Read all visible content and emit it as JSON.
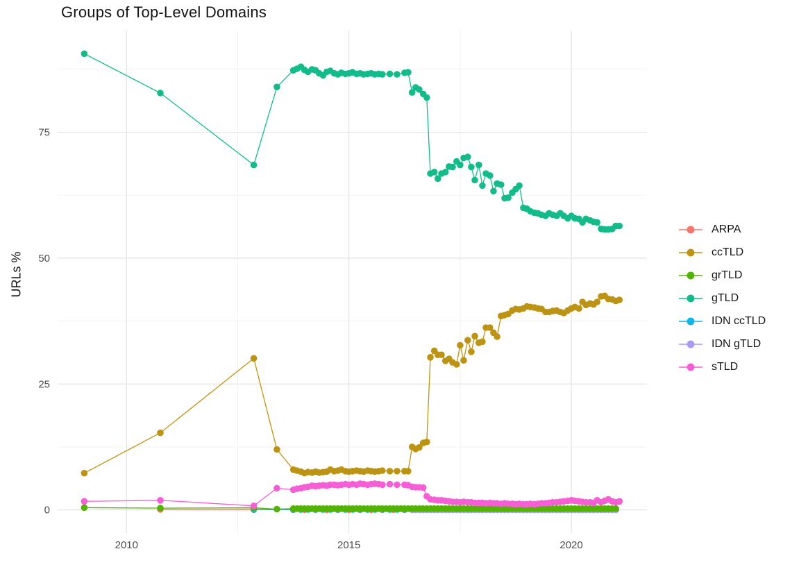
{
  "page": {
    "background": "#ffffff"
  },
  "chart_data": {
    "type": "line",
    "title": "Groups of Top-Level Domains",
    "xlabel": "",
    "ylabel": "URLs %",
    "legend_position": "right",
    "grid": "major+minor",
    "point_size": 4.8,
    "line_width": 1.3,
    "x_axis": {
      "lim": [
        2008.45,
        2021.7
      ],
      "ticks": [
        2010,
        2015,
        2020
      ],
      "tick_labels": [
        "2010",
        "2015",
        "2020"
      ],
      "minor": [
        2012.5,
        2017.5
      ]
    },
    "y_axis": {
      "lim": [
        -4.6,
        95.2
      ],
      "ticks": [
        0,
        25,
        50,
        75
      ],
      "tick_labels": [
        "0",
        "25",
        "50",
        "75"
      ],
      "minor": [
        12.5,
        37.5,
        62.5,
        87.5
      ]
    },
    "colors": {
      "grid_major": "#E3E3E3",
      "grid_minor": "#F0F0F0",
      "tick_label": "#4D4D4D",
      "title": "#141414"
    },
    "series": [
      {
        "name": "ARPA",
        "color": "#F8766D",
        "z": 1,
        "points": [
          [
            2010.76,
            0.1
          ],
          [
            2012.86,
            0.05
          ]
        ],
        "segments": [
          {
            "from": 2013.75,
            "to": 2021.08,
            "step": 0.25,
            "value": 0.05
          }
        ]
      },
      {
        "name": "ccTLD",
        "color": "#BD9313",
        "z": 5,
        "points": [
          [
            2009.05,
            7.3
          ],
          [
            2010.76,
            15.3
          ],
          [
            2012.86,
            30.1
          ],
          [
            2013.38,
            12.0
          ],
          [
            2013.75,
            8.0
          ],
          [
            2013.83,
            7.8
          ],
          [
            2013.92,
            7.6
          ],
          [
            2014.0,
            7.3
          ],
          [
            2014.08,
            7.5
          ],
          [
            2014.17,
            7.4
          ],
          [
            2014.25,
            7.6
          ],
          [
            2014.33,
            7.4
          ],
          [
            2014.42,
            7.5
          ],
          [
            2014.5,
            7.6
          ],
          [
            2014.58,
            8.0
          ],
          [
            2014.67,
            7.7
          ],
          [
            2014.75,
            7.8
          ],
          [
            2014.83,
            8.0
          ],
          [
            2014.92,
            7.7
          ],
          [
            2015.0,
            7.6
          ],
          [
            2015.08,
            7.7
          ],
          [
            2015.17,
            7.8
          ],
          [
            2015.25,
            7.7
          ],
          [
            2015.33,
            7.6
          ],
          [
            2015.42,
            7.8
          ],
          [
            2015.5,
            7.7
          ],
          [
            2015.58,
            7.6
          ],
          [
            2015.67,
            7.7
          ],
          [
            2015.75,
            7.8
          ],
          [
            2015.92,
            7.7
          ],
          [
            2016.08,
            7.7
          ],
          [
            2016.25,
            7.7
          ],
          [
            2016.33,
            7.7
          ],
          [
            2016.42,
            12.5
          ],
          [
            2016.5,
            12.1
          ],
          [
            2016.58,
            12.4
          ],
          [
            2016.67,
            13.3
          ],
          [
            2016.75,
            13.5
          ],
          [
            2016.83,
            30.3
          ],
          [
            2016.92,
            31.6
          ],
          [
            2017.0,
            30.8
          ],
          [
            2017.08,
            30.8
          ],
          [
            2017.17,
            29.6
          ],
          [
            2017.25,
            30.0
          ],
          [
            2017.33,
            29.3
          ],
          [
            2017.42,
            28.9
          ],
          [
            2017.5,
            32.7
          ],
          [
            2017.58,
            29.7
          ],
          [
            2017.67,
            33.7
          ],
          [
            2017.75,
            31.4
          ],
          [
            2017.83,
            34.5
          ],
          [
            2017.92,
            33.2
          ],
          [
            2018.0,
            33.4
          ],
          [
            2018.08,
            36.2
          ],
          [
            2018.17,
            36.2
          ],
          [
            2018.25,
            35.2
          ],
          [
            2018.33,
            34.4
          ],
          [
            2018.42,
            38.5
          ],
          [
            2018.5,
            38.7
          ],
          [
            2018.58,
            38.9
          ],
          [
            2018.67,
            39.6
          ],
          [
            2018.75,
            39.9
          ],
          [
            2018.83,
            39.8
          ],
          [
            2018.92,
            40.0
          ],
          [
            2019.0,
            40.4
          ],
          [
            2019.08,
            40.3
          ],
          [
            2019.17,
            40.2
          ],
          [
            2019.25,
            40.0
          ],
          [
            2019.33,
            39.9
          ],
          [
            2019.42,
            39.3
          ],
          [
            2019.5,
            39.3
          ],
          [
            2019.58,
            39.5
          ],
          [
            2019.67,
            39.6
          ],
          [
            2019.75,
            39.3
          ],
          [
            2019.83,
            39.1
          ],
          [
            2019.92,
            39.6
          ],
          [
            2020.0,
            40.0
          ],
          [
            2020.08,
            40.3
          ],
          [
            2020.17,
            40.0
          ],
          [
            2020.25,
            41.3
          ],
          [
            2020.33,
            40.7
          ],
          [
            2020.42,
            41.0
          ],
          [
            2020.5,
            40.8
          ],
          [
            2020.58,
            41.3
          ],
          [
            2020.67,
            42.4
          ],
          [
            2020.75,
            42.5
          ],
          [
            2020.83,
            41.9
          ],
          [
            2020.92,
            41.8
          ],
          [
            2021.0,
            41.5
          ],
          [
            2021.08,
            41.7
          ]
        ]
      },
      {
        "name": "grTLD",
        "color": "#53B400",
        "z": 4,
        "points": [
          [
            2009.05,
            0.45
          ],
          [
            2010.76,
            0.35
          ],
          [
            2012.86,
            0.4
          ],
          [
            2013.38,
            0.15
          ]
        ],
        "segments": [
          {
            "from": 2013.75,
            "to": 2021.08,
            "step": 0.0833,
            "value": 0.25
          }
        ]
      },
      {
        "name": "gTLD",
        "color": "#12BC8A",
        "z": 6,
        "points": [
          [
            2009.05,
            90.6
          ],
          [
            2010.76,
            82.8
          ],
          [
            2012.86,
            68.5
          ],
          [
            2013.38,
            84.0
          ],
          [
            2013.75,
            87.3
          ],
          [
            2013.83,
            87.6
          ],
          [
            2013.92,
            88.0
          ],
          [
            2014.0,
            87.4
          ],
          [
            2014.08,
            87.0
          ],
          [
            2014.17,
            87.5
          ],
          [
            2014.25,
            87.3
          ],
          [
            2014.33,
            86.7
          ],
          [
            2014.42,
            86.3
          ],
          [
            2014.5,
            87.0
          ],
          [
            2014.58,
            87.2
          ],
          [
            2014.67,
            86.7
          ],
          [
            2014.75,
            86.5
          ],
          [
            2014.83,
            86.8
          ],
          [
            2014.92,
            86.6
          ],
          [
            2015.0,
            86.7
          ],
          [
            2015.08,
            86.9
          ],
          [
            2015.17,
            86.6
          ],
          [
            2015.25,
            86.7
          ],
          [
            2015.33,
            86.5
          ],
          [
            2015.42,
            86.6
          ],
          [
            2015.5,
            86.7
          ],
          [
            2015.58,
            86.5
          ],
          [
            2015.67,
            86.6
          ],
          [
            2015.75,
            86.5
          ],
          [
            2015.92,
            86.6
          ],
          [
            2016.08,
            86.5
          ],
          [
            2016.25,
            86.8
          ],
          [
            2016.33,
            86.9
          ],
          [
            2016.42,
            82.9
          ],
          [
            2016.5,
            83.9
          ],
          [
            2016.58,
            83.5
          ],
          [
            2016.67,
            82.6
          ],
          [
            2016.75,
            81.9
          ],
          [
            2016.83,
            66.8
          ],
          [
            2016.92,
            67.1
          ],
          [
            2017.0,
            65.8
          ],
          [
            2017.08,
            66.8
          ],
          [
            2017.17,
            67.1
          ],
          [
            2017.25,
            68.2
          ],
          [
            2017.33,
            68.1
          ],
          [
            2017.42,
            69.2
          ],
          [
            2017.5,
            68.5
          ],
          [
            2017.58,
            69.9
          ],
          [
            2017.67,
            70.1
          ],
          [
            2017.75,
            68.1
          ],
          [
            2017.83,
            65.5
          ],
          [
            2017.92,
            68.5
          ],
          [
            2018.0,
            64.4
          ],
          [
            2018.08,
            66.8
          ],
          [
            2018.17,
            66.4
          ],
          [
            2018.25,
            63.3
          ],
          [
            2018.33,
            64.8
          ],
          [
            2018.42,
            64.6
          ],
          [
            2018.5,
            61.9
          ],
          [
            2018.58,
            62.0
          ],
          [
            2018.67,
            63.0
          ],
          [
            2018.75,
            63.7
          ],
          [
            2018.83,
            64.4
          ],
          [
            2018.92,
            60.0
          ],
          [
            2019.0,
            59.8
          ],
          [
            2019.08,
            59.3
          ],
          [
            2019.17,
            59.0
          ],
          [
            2019.25,
            58.9
          ],
          [
            2019.33,
            58.6
          ],
          [
            2019.42,
            58.4
          ],
          [
            2019.5,
            58.9
          ],
          [
            2019.58,
            58.6
          ],
          [
            2019.67,
            58.4
          ],
          [
            2019.75,
            58.9
          ],
          [
            2019.83,
            58.4
          ],
          [
            2019.92,
            57.9
          ],
          [
            2020.0,
            58.4
          ],
          [
            2020.08,
            57.9
          ],
          [
            2020.17,
            57.8
          ],
          [
            2020.25,
            57.1
          ],
          [
            2020.33,
            57.8
          ],
          [
            2020.42,
            57.5
          ],
          [
            2020.5,
            57.2
          ],
          [
            2020.58,
            57.1
          ],
          [
            2020.67,
            55.8
          ],
          [
            2020.75,
            55.7
          ],
          [
            2020.83,
            55.7
          ],
          [
            2020.92,
            55.8
          ],
          [
            2021.0,
            56.4
          ],
          [
            2021.08,
            56.4
          ]
        ]
      },
      {
        "name": "IDN ccTLD",
        "color": "#0FB6E8",
        "z": 2,
        "points": [
          [
            2012.86,
            0.1
          ]
        ],
        "segments": [
          {
            "from": 2013.75,
            "to": 2021.08,
            "step": 0.1667,
            "value": 0.07
          }
        ]
      },
      {
        "name": "IDN gTLD",
        "color": "#A79BF2",
        "z": 3,
        "points": [],
        "segments": [
          {
            "from": 2016.42,
            "to": 2021.08,
            "step": 0.0833,
            "value": 0.02
          }
        ]
      },
      {
        "name": "sTLD",
        "color": "#F55ED4",
        "z": 7,
        "points": [
          [
            2009.05,
            1.7
          ],
          [
            2010.76,
            1.9
          ],
          [
            2012.86,
            0.8
          ],
          [
            2013.38,
            4.3
          ],
          [
            2013.75,
            4.0
          ],
          [
            2013.83,
            4.2
          ],
          [
            2013.92,
            4.3
          ],
          [
            2014.0,
            4.5
          ],
          [
            2014.08,
            4.6
          ],
          [
            2014.17,
            4.8
          ],
          [
            2014.25,
            4.7
          ],
          [
            2014.33,
            4.8
          ],
          [
            2014.42,
            4.9
          ],
          [
            2014.5,
            4.8
          ],
          [
            2014.58,
            5.0
          ],
          [
            2014.67,
            5.0
          ],
          [
            2014.75,
            4.9
          ],
          [
            2014.83,
            5.0
          ],
          [
            2014.92,
            5.1
          ],
          [
            2015.0,
            5.0
          ],
          [
            2015.08,
            5.1
          ],
          [
            2015.17,
            5.0
          ],
          [
            2015.25,
            5.2
          ],
          [
            2015.33,
            5.1
          ],
          [
            2015.42,
            5.0
          ],
          [
            2015.5,
            5.1
          ],
          [
            2015.58,
            5.2
          ],
          [
            2015.67,
            5.1
          ],
          [
            2015.75,
            5.0
          ],
          [
            2015.92,
            5.1
          ],
          [
            2016.08,
            5.0
          ],
          [
            2016.25,
            5.0
          ],
          [
            2016.33,
            4.9
          ],
          [
            2016.42,
            4.6
          ],
          [
            2016.5,
            4.5
          ],
          [
            2016.58,
            4.5
          ],
          [
            2016.67,
            4.4
          ],
          [
            2016.75,
            2.7
          ],
          [
            2016.83,
            2.1
          ],
          [
            2016.92,
            2.0
          ],
          [
            2017.0,
            1.9
          ],
          [
            2017.08,
            1.9
          ],
          [
            2017.17,
            1.8
          ],
          [
            2017.25,
            1.7
          ],
          [
            2017.33,
            1.6
          ],
          [
            2017.42,
            1.6
          ],
          [
            2017.5,
            1.5
          ],
          [
            2017.58,
            1.6
          ],
          [
            2017.67,
            1.5
          ],
          [
            2017.75,
            1.5
          ],
          [
            2017.83,
            1.4
          ],
          [
            2017.92,
            1.4
          ],
          [
            2018.0,
            1.4
          ],
          [
            2018.08,
            1.3
          ],
          [
            2018.17,
            1.4
          ],
          [
            2018.25,
            1.3
          ],
          [
            2018.33,
            1.3
          ],
          [
            2018.42,
            1.2
          ],
          [
            2018.5,
            1.3
          ],
          [
            2018.58,
            1.2
          ],
          [
            2018.67,
            1.2
          ],
          [
            2018.75,
            1.1
          ],
          [
            2018.83,
            1.2
          ],
          [
            2018.92,
            1.1
          ],
          [
            2019.0,
            1.1
          ],
          [
            2019.08,
            1.2
          ],
          [
            2019.17,
            1.1
          ],
          [
            2019.25,
            1.2
          ],
          [
            2019.33,
            1.3
          ],
          [
            2019.42,
            1.3
          ],
          [
            2019.5,
            1.4
          ],
          [
            2019.58,
            1.5
          ],
          [
            2019.67,
            1.5
          ],
          [
            2019.75,
            1.6
          ],
          [
            2019.83,
            1.7
          ],
          [
            2019.92,
            1.8
          ],
          [
            2020.0,
            1.9
          ],
          [
            2020.08,
            1.8
          ],
          [
            2020.17,
            1.7
          ],
          [
            2020.25,
            1.6
          ],
          [
            2020.33,
            1.5
          ],
          [
            2020.42,
            1.5
          ],
          [
            2020.5,
            1.4
          ],
          [
            2020.58,
            1.9
          ],
          [
            2020.67,
            1.5
          ],
          [
            2020.75,
            1.8
          ],
          [
            2020.83,
            2.1
          ],
          [
            2020.92,
            1.7
          ],
          [
            2021.0,
            1.5
          ],
          [
            2021.08,
            1.7
          ]
        ]
      }
    ]
  }
}
